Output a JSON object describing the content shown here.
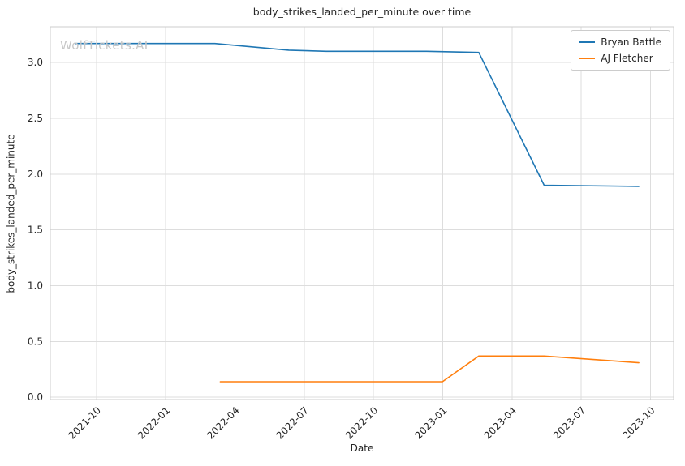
{
  "chart_data": {
    "type": "line",
    "title": "body_strikes_landed_per_minute over time",
    "xlabel": "Date",
    "ylabel": "body_strikes_landed_per_minute",
    "watermark": "WolfTickets.AI",
    "grid": true,
    "legend_position": "upper right",
    "x_tick_labels": [
      "2021-10",
      "2022-01",
      "2022-04",
      "2022-07",
      "2022-10",
      "2023-01",
      "2023-04",
      "2023-07",
      "2023-10"
    ],
    "y_ticks": [
      0,
      0.5,
      1,
      1.5,
      2,
      2.5,
      3
    ],
    "y_tick_labels": [
      "0.0",
      "0.5",
      "1.0",
      "1.5",
      "2.0",
      "2.5",
      "3.0"
    ],
    "xlim": [
      "2021-08-01",
      "2023-11-01"
    ],
    "ylim": [
      -0.02,
      3.32
    ],
    "series": [
      {
        "name": "Bryan Battle",
        "color": "#1f77b4",
        "points": [
          [
            "2021-09-04",
            3.17
          ],
          [
            "2022-03-05",
            3.17
          ],
          [
            "2022-06-11",
            3.11
          ],
          [
            "2022-07-30",
            3.1
          ],
          [
            "2022-12-10",
            3.1
          ],
          [
            "2023-02-18",
            3.09
          ],
          [
            "2023-05-13",
            1.9
          ],
          [
            "2023-09-16",
            1.89
          ]
        ]
      },
      {
        "name": "AJ Fletcher",
        "color": "#ff7f0e",
        "points": [
          [
            "2022-03-12",
            0.14
          ],
          [
            "2022-12-31",
            0.14
          ],
          [
            "2023-02-18",
            0.37
          ],
          [
            "2023-05-13",
            0.37
          ],
          [
            "2023-07-15",
            0.34
          ],
          [
            "2023-09-16",
            0.31
          ]
        ]
      }
    ],
    "colors": {
      "grid": "#dddddd",
      "spine": "#cccccc",
      "text": "#262626",
      "watermark": "#c8c8c8",
      "background": "#ffffff",
      "series_blue": "#1f77b4",
      "series_orange": "#ff7f0e"
    }
  }
}
